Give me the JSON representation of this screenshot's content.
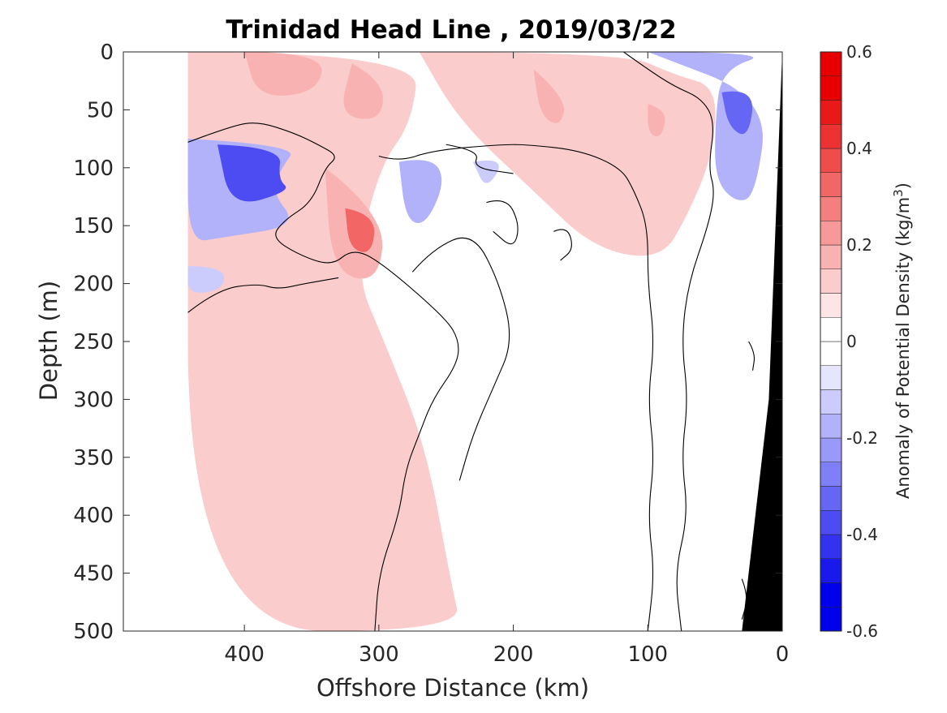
{
  "chart_data": {
    "type": "heatmap",
    "title": "Trinidad Head Line , 2019/03/22",
    "xlabel": "Offshore Distance (km)",
    "ylabel": "Depth (m)",
    "xlim": [
      490,
      0
    ],
    "ylim": [
      500,
      0
    ],
    "x_reversed": true,
    "y_reversed": true,
    "x_ticks": [
      "400",
      "300",
      "200",
      "100",
      "0"
    ],
    "x_tick_values": [
      400,
      300,
      200,
      100,
      0
    ],
    "y_ticks": [
      "0",
      "50",
      "100",
      "150",
      "200",
      "250",
      "300",
      "350",
      "400",
      "450",
      "500"
    ],
    "y_tick_values": [
      0,
      50,
      100,
      150,
      200,
      250,
      300,
      350,
      400,
      450,
      500
    ],
    "colorbar": {
      "label": "Anomaly of Potential Density (kg/m",
      "label_superscript": "3",
      "label_suffix": ")",
      "range": [
        -0.6,
        0.6
      ],
      "step": 0.05,
      "ticks": [
        "0.6",
        "0.4",
        "0.2",
        "0",
        "-0.2",
        "-0.4",
        "-0.6"
      ],
      "tick_values": [
        0.6,
        0.4,
        0.2,
        0,
        -0.2,
        -0.4,
        -0.6
      ],
      "colors": {
        "neg": [
          "#e5e5fd",
          "#ccccfc",
          "#b2b2fb",
          "#9999f9",
          "#7f7ff7",
          "#6666f4",
          "#4c4cf2",
          "#3232ef",
          "#1919ec",
          "#0000ea"
        ],
        "pos": [
          "#fde5e5",
          "#fbcccc",
          "#f9b2b2",
          "#f79999",
          "#f47f7f",
          "#f26666",
          "#ef4c4c",
          "#ec3232",
          "#ea1919",
          "#e80000"
        ]
      }
    },
    "regions": [
      {
        "name": "positive-anomaly-band",
        "value": 0.05,
        "polygon": [
          [
            442,
            0
          ],
          [
            270,
            0
          ],
          [
            275,
            60
          ],
          [
            300,
            100
          ],
          [
            318,
            190
          ],
          [
            296,
            250
          ],
          [
            265,
            340
          ],
          [
            246,
            460
          ],
          [
            238,
            500
          ],
          [
            442,
            500
          ]
        ]
      },
      {
        "name": "positive-anomaly-nearshore",
        "value": 0.05,
        "polygon": [
          [
            270,
            0
          ],
          [
            118,
            0
          ],
          [
            80,
            20
          ],
          [
            48,
            30
          ],
          [
            52,
            90
          ],
          [
            70,
            140
          ],
          [
            90,
            180
          ],
          [
            140,
            170
          ],
          [
            185,
            120
          ],
          [
            240,
            60
          ]
        ]
      },
      {
        "name": "positive-core-375km",
        "value": 0.15,
        "polygon": [
          [
            400,
            0
          ],
          [
            340,
            0
          ],
          [
            345,
            35
          ],
          [
            390,
            40
          ]
        ]
      },
      {
        "name": "positive-core-310km",
        "value": 0.15,
        "polygon": [
          [
            320,
            10
          ],
          [
            296,
            25
          ],
          [
            298,
            60
          ],
          [
            330,
            55
          ]
        ]
      },
      {
        "name": "positive-core-320km-deep",
        "value": 0.15,
        "polygon": [
          [
            340,
            100
          ],
          [
            295,
            140
          ],
          [
            300,
            200
          ],
          [
            335,
            190
          ]
        ]
      },
      {
        "name": "positive-peak-320km",
        "value": 0.25,
        "polygon": [
          [
            325,
            135
          ],
          [
            302,
            140
          ],
          [
            305,
            175
          ],
          [
            322,
            170
          ]
        ]
      },
      {
        "name": "positive-core-170km",
        "value": 0.15,
        "polygon": [
          [
            185,
            15
          ],
          [
            160,
            40
          ],
          [
            165,
            65
          ],
          [
            180,
            55
          ]
        ]
      },
      {
        "name": "positive-core-95km",
        "value": 0.12,
        "polygon": [
          [
            100,
            45
          ],
          [
            85,
            50
          ],
          [
            90,
            75
          ],
          [
            100,
            70
          ]
        ]
      },
      {
        "name": "negative-anomaly-420km",
        "value": -0.15,
        "polygon": [
          [
            442,
            75
          ],
          [
            360,
            80
          ],
          [
            372,
            100
          ],
          [
            380,
            120
          ],
          [
            360,
            150
          ],
          [
            415,
            160
          ],
          [
            442,
            165
          ]
        ]
      },
      {
        "name": "negative-core-400km",
        "value": -0.35,
        "polygon": [
          [
            420,
            80
          ],
          [
            372,
            82
          ],
          [
            375,
            110
          ],
          [
            365,
            120
          ],
          [
            410,
            135
          ]
        ]
      },
      {
        "name": "negative-anomaly-270km",
        "value": -0.1,
        "polygon": [
          [
            285,
            95
          ],
          [
            262,
            90
          ],
          [
            250,
            110
          ],
          [
            265,
            150
          ],
          [
            280,
            145
          ]
        ]
      },
      {
        "name": "negative-anomaly-215km",
        "value": -0.05,
        "polygon": [
          [
            230,
            95
          ],
          [
            205,
            90
          ],
          [
            220,
            120
          ]
        ]
      },
      {
        "name": "negative-anomaly-440km-deep",
        "value": -0.05,
        "polygon": [
          [
            442,
            185
          ],
          [
            415,
            185
          ],
          [
            415,
            205
          ],
          [
            442,
            210
          ]
        ]
      },
      {
        "name": "negative-anomaly-nearshore",
        "value": -0.15,
        "polygon": [
          [
            100,
            0
          ],
          [
            5,
            0
          ],
          [
            45,
            15
          ],
          [
            50,
            60
          ],
          [
            50,
            110
          ],
          [
            35,
            130
          ],
          [
            20,
            125
          ],
          [
            10,
            40
          ]
        ]
      },
      {
        "name": "negative-core-nearshore",
        "value": -0.3,
        "polygon": [
          [
            45,
            35
          ],
          [
            20,
            30
          ],
          [
            25,
            75
          ],
          [
            40,
            65
          ]
        ]
      }
    ],
    "zero_contours": [
      [
        [
          442,
          78
        ],
        [
          410,
          64
        ],
        [
          390,
          60
        ],
        [
          363,
          70
        ],
        [
          345,
          80
        ],
        [
          330,
          90
        ],
        [
          340,
          100
        ],
        [
          350,
          130
        ],
        [
          370,
          145
        ],
        [
          380,
          160
        ],
        [
          360,
          175
        ],
        [
          335,
          185
        ],
        [
          320,
          170
        ],
        [
          300,
          180
        ],
        [
          250,
          230
        ],
        [
          240,
          250
        ],
        [
          242,
          270
        ],
        [
          260,
          300
        ],
        [
          270,
          330
        ],
        [
          280,
          360
        ],
        [
          285,
          400
        ],
        [
          300,
          450
        ],
        [
          303,
          500
        ]
      ],
      [
        [
          442,
          225
        ],
        [
          420,
          205
        ],
        [
          390,
          200
        ],
        [
          375,
          205
        ],
        [
          355,
          200
        ],
        [
          330,
          195
        ]
      ],
      [
        [
          300,
          90
        ],
        [
          285,
          95
        ],
        [
          260,
          85
        ],
        [
          210,
          80
        ],
        [
          190,
          80
        ],
        [
          150,
          85
        ],
        [
          120,
          100
        ],
        [
          110,
          120
        ],
        [
          100,
          150
        ],
        [
          100,
          200
        ],
        [
          95,
          250
        ],
        [
          100,
          300
        ],
        [
          95,
          350
        ],
        [
          100,
          400
        ],
        [
          95,
          450
        ],
        [
          100,
          500
        ]
      ],
      [
        [
          250,
          80
        ],
        [
          225,
          85
        ],
        [
          230,
          100
        ],
        [
          200,
          105
        ]
      ],
      [
        [
          275,
          190
        ],
        [
          260,
          170
        ],
        [
          230,
          155
        ],
        [
          210,
          200
        ],
        [
          200,
          250
        ],
        [
          215,
          290
        ],
        [
          230,
          330
        ],
        [
          240,
          370
        ]
      ],
      [
        [
          220,
          130
        ],
        [
          205,
          125
        ],
        [
          195,
          150
        ],
        [
          200,
          170
        ],
        [
          215,
          155
        ]
      ],
      [
        [
          170,
          155
        ],
        [
          160,
          150
        ],
        [
          155,
          170
        ],
        [
          165,
          180
        ]
      ],
      [
        [
          118,
          0
        ],
        [
          100,
          15
        ],
        [
          80,
          30
        ],
        [
          60,
          40
        ],
        [
          50,
          60
        ],
        [
          55,
          100
        ],
        [
          50,
          120
        ],
        [
          55,
          150
        ],
        [
          70,
          200
        ],
        [
          75,
          250
        ],
        [
          70,
          300
        ],
        [
          75,
          350
        ],
        [
          70,
          400
        ],
        [
          80,
          450
        ],
        [
          75,
          500
        ]
      ],
      [
        [
          25,
          250
        ],
        [
          20,
          260
        ],
        [
          22,
          275
        ]
      ],
      [
        [
          30,
          455
        ],
        [
          25,
          470
        ],
        [
          30,
          490
        ]
      ]
    ],
    "land": {
      "polygon": [
        [
          30,
          500
        ],
        [
          10,
          300
        ],
        [
          0,
          0
        ],
        [
          0,
          500
        ]
      ]
    },
    "data_start_offshore_km": 442
  }
}
